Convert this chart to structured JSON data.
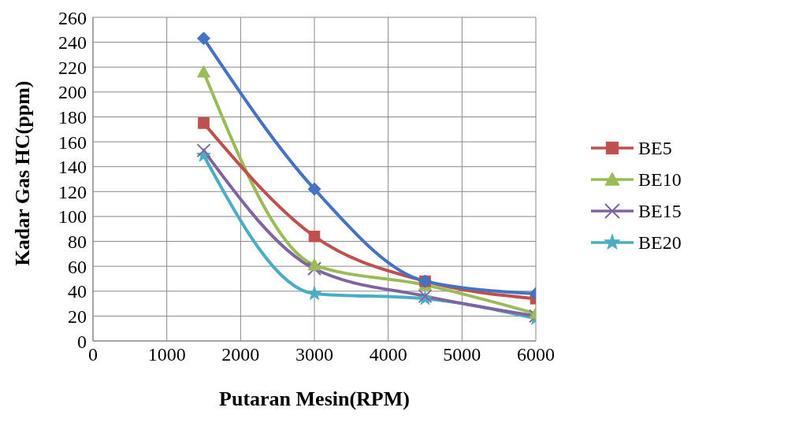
{
  "chart_data": {
    "type": "line",
    "xlabel": "Putaran Mesin(RPM)",
    "ylabel": "Kadar Gas HC(ppm)",
    "x": [
      1500,
      3000,
      4500,
      6000
    ],
    "series": [
      {
        "color": "#4472c4",
        "marker": "diamond",
        "values": [
          243,
          122,
          48,
          38
        ]
      },
      {
        "name": "BE5",
        "color": "#c0504d",
        "marker": "square",
        "values": [
          175,
          84,
          48,
          34
        ]
      },
      {
        "name": "BE10",
        "color": "#9bbb59",
        "marker": "triangle",
        "values": [
          216,
          61,
          45,
          22
        ]
      },
      {
        "name": "BE15",
        "color": "#8064a2",
        "marker": "cross",
        "values": [
          153,
          58,
          36,
          20
        ]
      },
      {
        "name": "BE20",
        "color": "#4bacc6",
        "marker": "star",
        "values": [
          149,
          38,
          34,
          18
        ]
      }
    ],
    "xlim": [
      0,
      6000
    ],
    "xticks": [
      0,
      1000,
      2000,
      3000,
      4000,
      5000,
      6000
    ],
    "ylim": [
      0,
      260
    ],
    "yticks": [
      0,
      20,
      40,
      60,
      80,
      100,
      120,
      140,
      160,
      180,
      200,
      220,
      240,
      260
    ],
    "grid": true,
    "legend": "right",
    "line_style": "solid"
  }
}
